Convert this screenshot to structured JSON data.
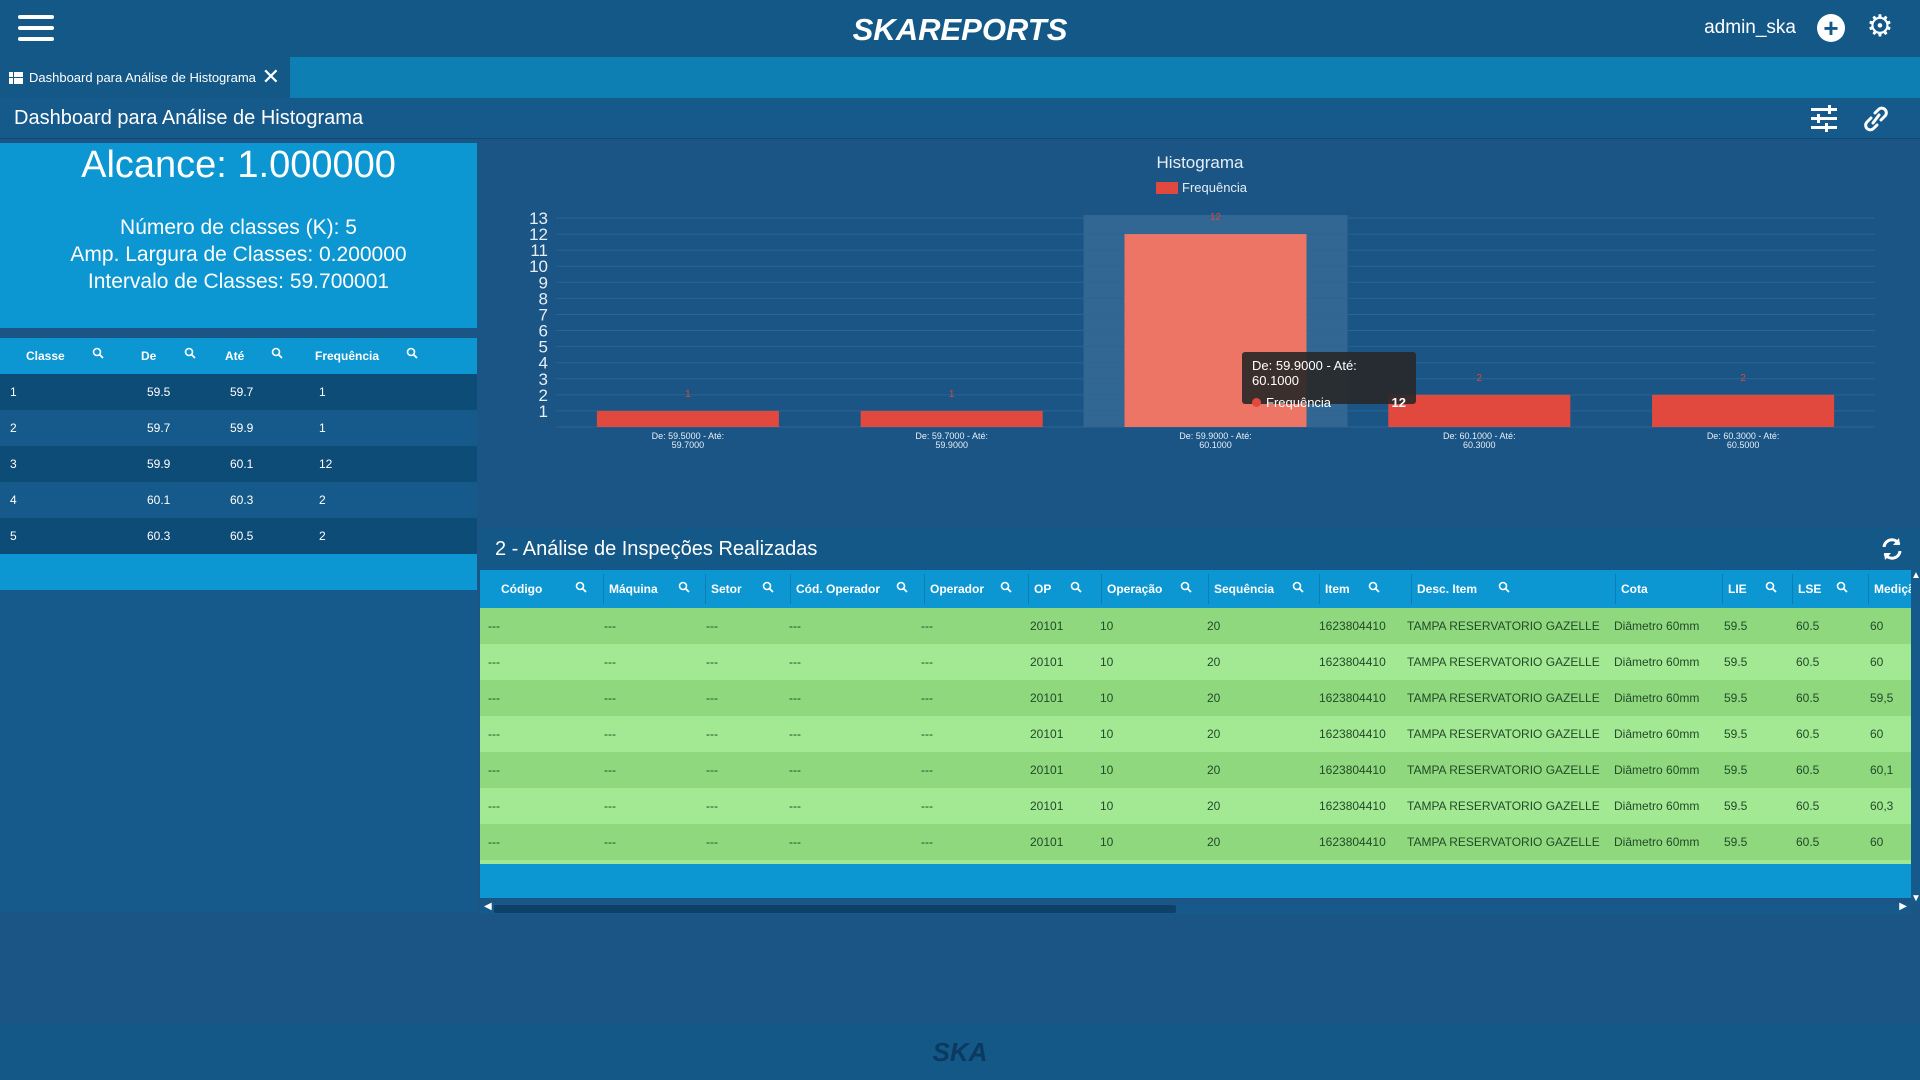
{
  "topbar": {
    "brand": "SKAREPORTS",
    "username": "admin_ska",
    "plus_icon": "plus-circle-icon",
    "gear_icon": "gear-icon",
    "menu_icon": "hamburger-menu-icon"
  },
  "tab": {
    "label": "Dashboard para Análise de Histograma",
    "close": "✕"
  },
  "page": {
    "title": "Dashboard para Análise de Histograma"
  },
  "summary": {
    "alcance": "Alcance: 1.000000",
    "num_classes": "Número de classes (K): 5",
    "amplitude": "Amp. Largura de Classes: 0.200000",
    "intervalo": "Intervalo de Classes: 59.700001"
  },
  "class_table": {
    "headers": [
      "Classe",
      "De",
      "Até",
      "Frequência"
    ],
    "rows": [
      [
        "1",
        "59.5",
        "59.7",
        "1"
      ],
      [
        "2",
        "59.7",
        "59.9",
        "1"
      ],
      [
        "3",
        "59.9",
        "60.1",
        "12"
      ],
      [
        "4",
        "60.1",
        "60.3",
        "2"
      ],
      [
        "5",
        "60.3",
        "60.5",
        "2"
      ]
    ]
  },
  "chart_data": {
    "type": "bar",
    "title": "Histograma",
    "legend": [
      "Frequência"
    ],
    "categories": [
      [
        "De: 59.5000 - Até:",
        "59.7000"
      ],
      [
        "De: 59.7000 - Até:",
        "59.9000"
      ],
      [
        "De: 59.9000 - Até:",
        "60.1000"
      ],
      [
        "De: 60.1000 - Até:",
        "60.3000"
      ],
      [
        "De: 60.3000 - Até:",
        "60.5000"
      ]
    ],
    "series": [
      {
        "name": "Frequência",
        "values": [
          1,
          1,
          12,
          2,
          2
        ]
      }
    ],
    "ylim": [
      0,
      13
    ],
    "yticks": [
      "1",
      "2",
      "3",
      "4",
      "5",
      "6",
      "7",
      "8",
      "9",
      "10",
      "11",
      "12",
      "13"
    ],
    "bar_color": "#e2493e",
    "highlight_index": 2,
    "grid": true
  },
  "tooltip": {
    "title": "De: 59.9000 - Até: 60.1000",
    "series": "Frequência",
    "value": "12"
  },
  "grid_section": {
    "title": "2 - Análise de Inspeções Realizadas",
    "refresh_icon": "refresh-icon",
    "columns": [
      "Código",
      "Máquina",
      "Setor",
      "Cód. Operador",
      "Operador",
      "OP",
      "Operação",
      "Sequência",
      "Item",
      "Desc. Item",
      "Cota",
      "LIE",
      "LSE",
      "Medição"
    ],
    "rows": [
      [
        "---",
        "---",
        "---",
        "---",
        "---",
        "20101",
        "10",
        "20",
        "1623804410",
        "TAMPA RESERVATORIO GAZELLE",
        "Diâmetro 60mm",
        "59.5",
        "60.5",
        "60"
      ],
      [
        "---",
        "---",
        "---",
        "---",
        "---",
        "20101",
        "10",
        "20",
        "1623804410",
        "TAMPA RESERVATORIO GAZELLE",
        "Diâmetro 60mm",
        "59.5",
        "60.5",
        "60"
      ],
      [
        "---",
        "---",
        "---",
        "---",
        "---",
        "20101",
        "10",
        "20",
        "1623804410",
        "TAMPA RESERVATORIO GAZELLE",
        "Diâmetro 60mm",
        "59.5",
        "60.5",
        "59,5"
      ],
      [
        "---",
        "---",
        "---",
        "---",
        "---",
        "20101",
        "10",
        "20",
        "1623804410",
        "TAMPA RESERVATORIO GAZELLE",
        "Diâmetro 60mm",
        "59.5",
        "60.5",
        "60"
      ],
      [
        "---",
        "---",
        "---",
        "---",
        "---",
        "20101",
        "10",
        "20",
        "1623804410",
        "TAMPA RESERVATORIO GAZELLE",
        "Diâmetro 60mm",
        "59.5",
        "60.5",
        "60,1"
      ],
      [
        "---",
        "---",
        "---",
        "---",
        "---",
        "20101",
        "10",
        "20",
        "1623804410",
        "TAMPA RESERVATORIO GAZELLE",
        "Diâmetro 60mm",
        "59.5",
        "60.5",
        "60,3"
      ],
      [
        "---",
        "---",
        "---",
        "---",
        "---",
        "20101",
        "10",
        "20",
        "1623804410",
        "TAMPA RESERVATORIO GAZELLE",
        "Diâmetro 60mm",
        "59.5",
        "60.5",
        "60"
      ]
    ]
  },
  "footer": {
    "logo": "SKA"
  }
}
